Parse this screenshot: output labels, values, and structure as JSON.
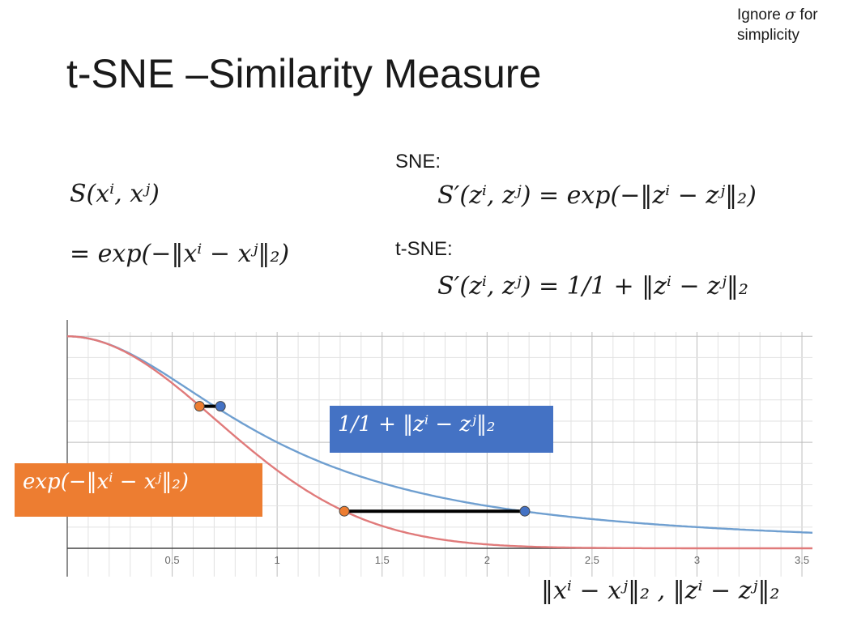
{
  "slide": {
    "title": "t-SNE –Similarity Measure",
    "note_line1_prefix": "Ignore",
    "note_symbol": "σ",
    "note_line1_suffix": "for",
    "note_line2": "simplicity"
  },
  "equations": {
    "s_lhs": "S(xⁱ, xʲ)",
    "s_rhs": "= exp(−‖xⁱ − xʲ‖₂)",
    "sne_label": "SNE:",
    "sne_eq": "S′(zⁱ, zʲ) = exp(−‖zⁱ − zʲ‖₂)",
    "tsne_label": "t-SNE:",
    "tsne_eq": "S′(zⁱ, zʲ) = 1/1 + ‖zⁱ − zʲ‖₂"
  },
  "annotations": {
    "blue_box": "1/1 + ‖zⁱ − zʲ‖₂",
    "orange_box": "exp(−‖xⁱ − xʲ‖₂)",
    "axis_caption": "‖xⁱ − xʲ‖₂ , ‖zⁱ − zʲ‖₂"
  },
  "chart_data": {
    "type": "line",
    "xlim": [
      0,
      3.55
    ],
    "ylim": [
      0,
      1.02
    ],
    "x_ticks": [
      "0.5",
      "1",
      "1.5",
      "2",
      "2.5",
      "3",
      "3.5"
    ],
    "grid": true,
    "series": [
      {
        "function": "1/(1+x^2)",
        "color": "#6f9fd0"
      },
      {
        "function": "exp(-x^2)",
        "color": "#e07a7a"
      }
    ],
    "markers": [
      {
        "x1": 0.63,
        "x2": 0.73,
        "y": 0.67,
        "colors": [
          "#ed7d31",
          "#4472c4"
        ]
      },
      {
        "x1": 1.32,
        "x2": 2.18,
        "y": 0.175,
        "colors": [
          "#ed7d31",
          "#4472c4"
        ]
      }
    ]
  }
}
